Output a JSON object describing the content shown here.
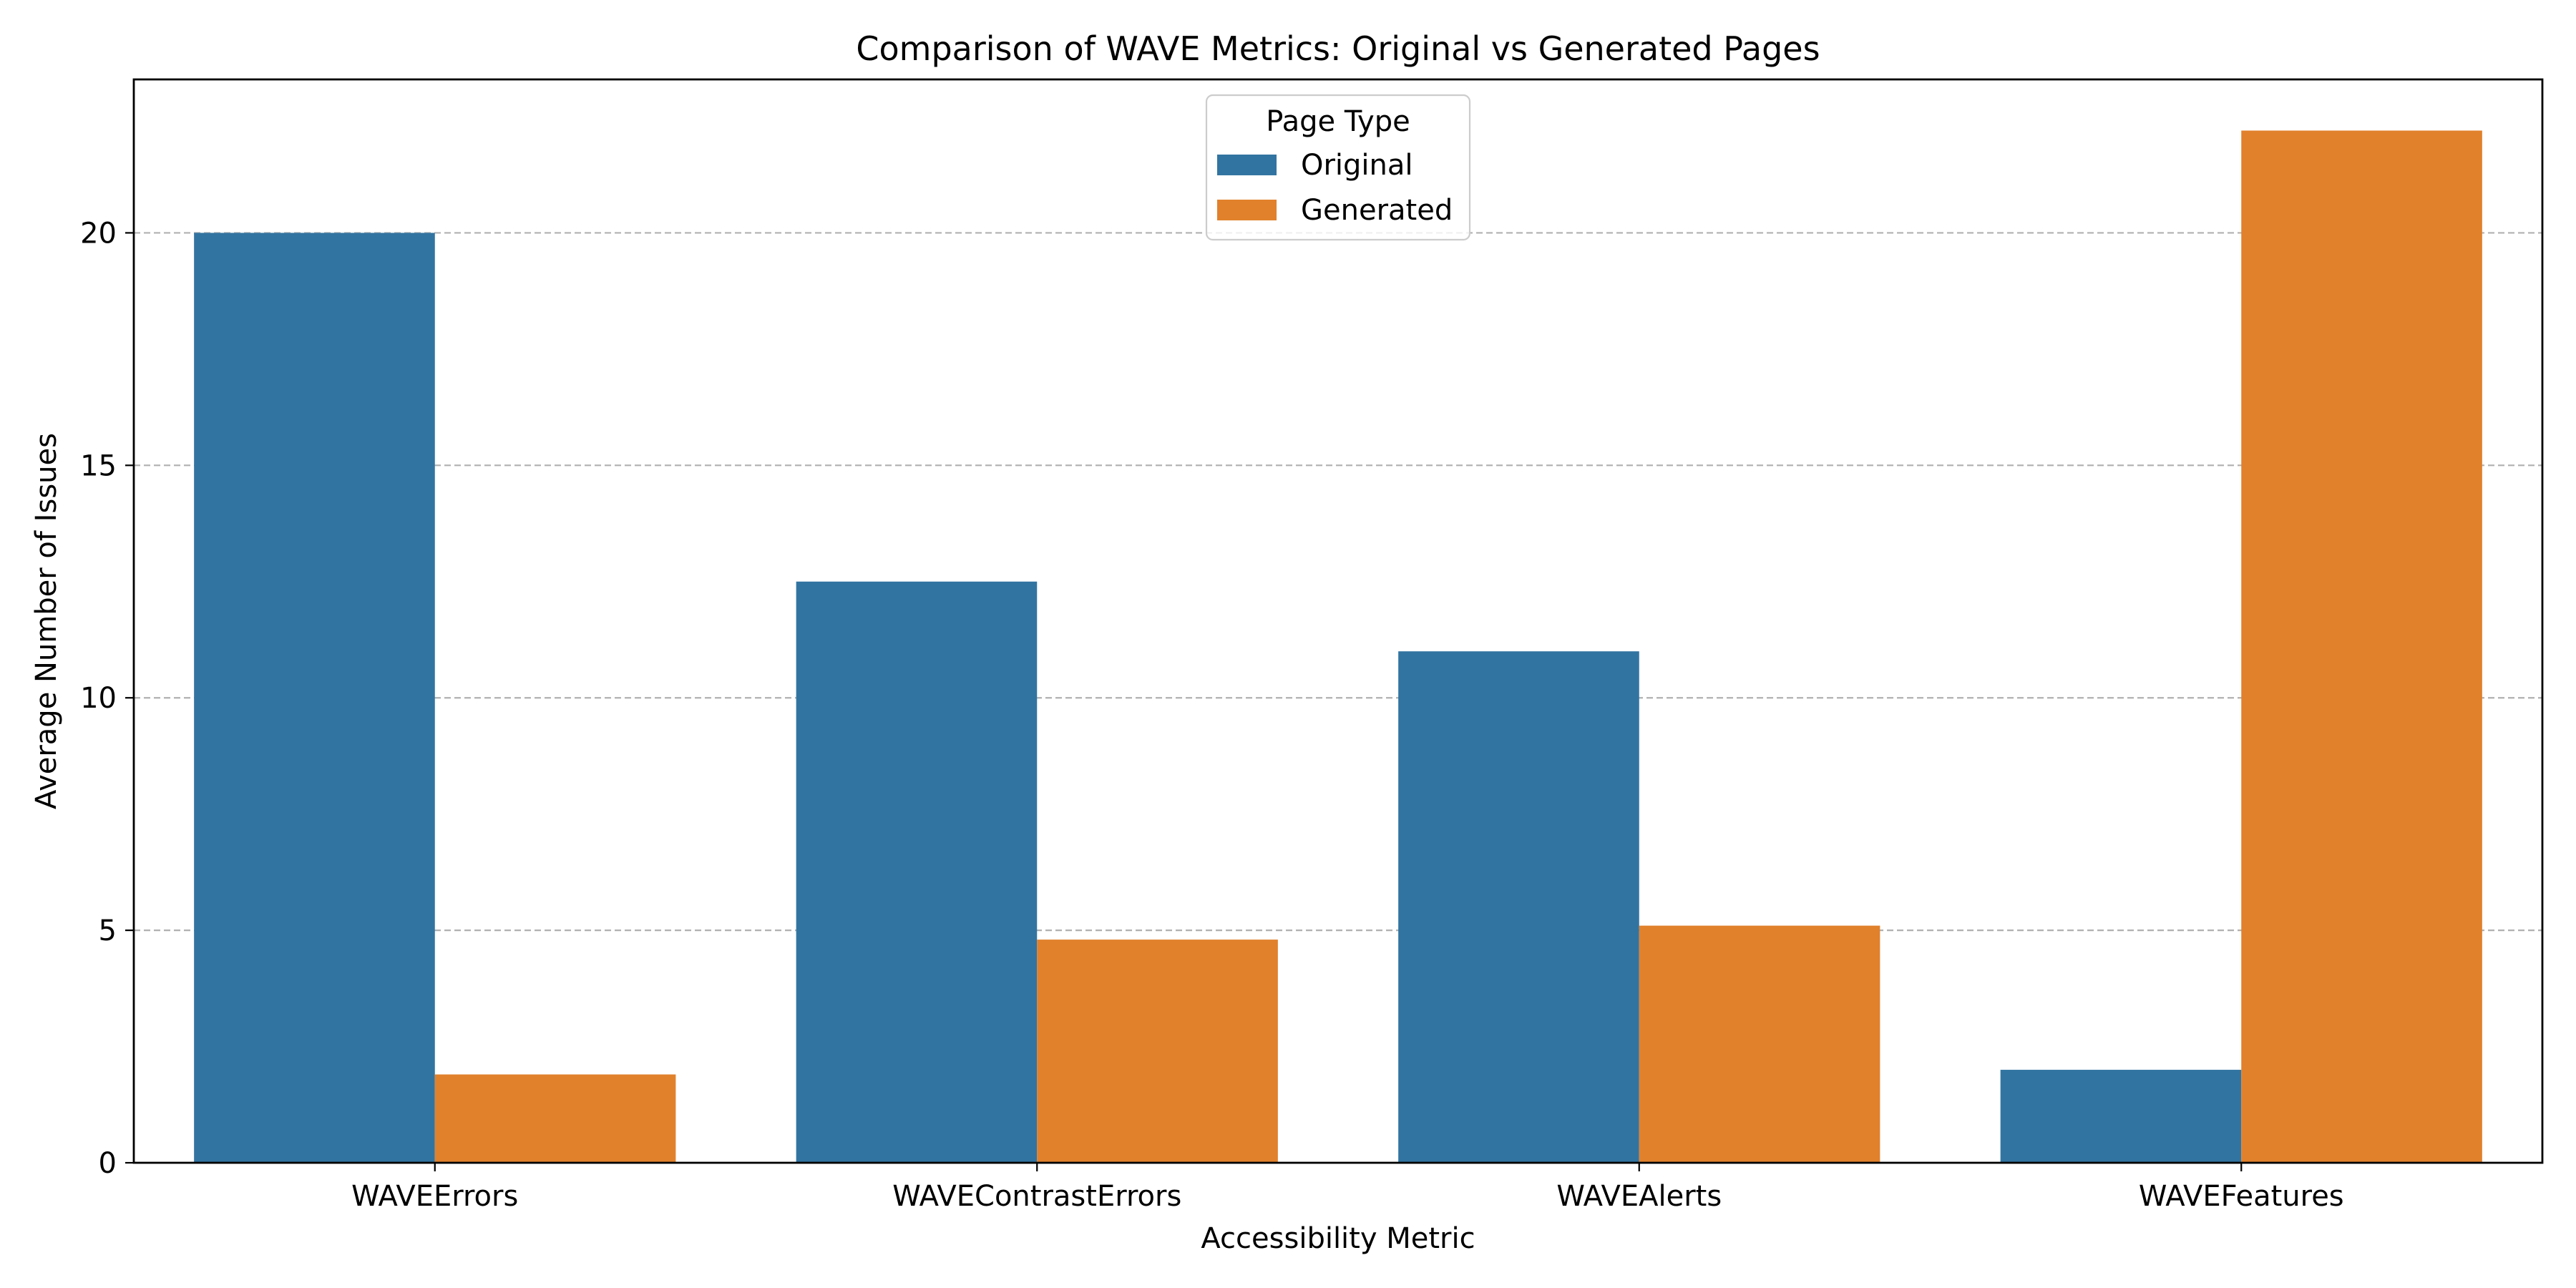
{
  "chart_data": {
    "type": "bar",
    "title": "Comparison of WAVE Metrics: Original vs Generated Pages",
    "xlabel": "Accessibility Metric",
    "ylabel": "Average Number of Issues",
    "categories": [
      "WAVEErrors",
      "WAVEContrastErrors",
      "WAVEAlerts",
      "WAVEFeatures"
    ],
    "series": [
      {
        "name": "Original",
        "color": "#3274a1",
        "values": [
          20.0,
          12.5,
          11.0,
          2.0
        ]
      },
      {
        "name": "Generated",
        "color": "#e1812c",
        "values": [
          1.9,
          4.8,
          5.1,
          22.2
        ]
      }
    ],
    "ylim": [
      0,
      23.3
    ],
    "yticks": [
      0,
      5,
      10,
      15,
      20
    ],
    "grid": "y-dashed",
    "legend": {
      "title": "Page Type",
      "placement": "top-center"
    }
  }
}
